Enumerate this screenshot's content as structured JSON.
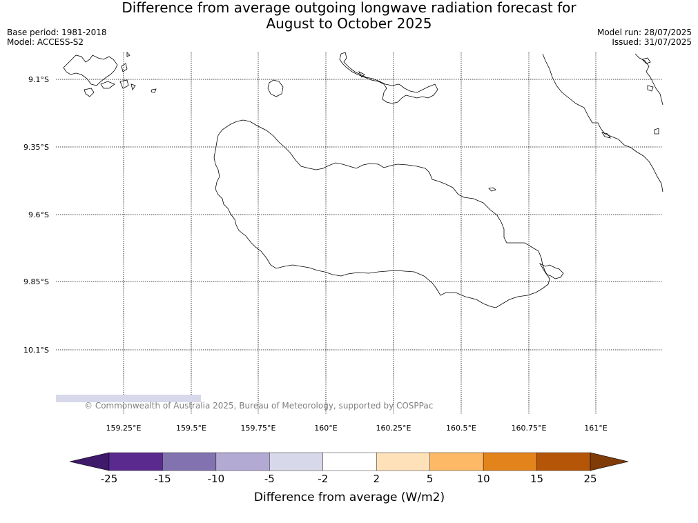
{
  "title": {
    "line1": "Difference from average outgoing longwave radiation forecast for",
    "line2": "August to October 2025"
  },
  "meta_left": {
    "base_period": "Base period: 1981-2018",
    "model": "Model: ACCESS-S2"
  },
  "meta_right": {
    "model_run": "Model run: 28/07/2025",
    "issued": "Issued: 31/07/2025"
  },
  "map": {
    "lat_labels": [
      "9.1°S",
      "9.35°S",
      "9.6°S",
      "9.85°S",
      "10.1°S"
    ],
    "lon_labels": [
      "159.25°E",
      "159.5°E",
      "159.75°E",
      "160°E",
      "160.25°E",
      "160.5°E",
      "160.75°E",
      "161°E"
    ],
    "copyright": "© Commonwealth of Australia 2025, Bureau of Meteorology, supported by COSPPac"
  },
  "legend": {
    "title": "Difference from average (W/m2)",
    "tick_labels": [
      "-25",
      "-15",
      "-10",
      "-5",
      "-2",
      "2",
      "5",
      "10",
      "15",
      "25"
    ],
    "colors": [
      "#3f1a6b",
      "#5a2a8e",
      "#8273b0",
      "#b3aad4",
      "#d8d8eb",
      "#ffffff",
      "#fee1b9",
      "#fdb965",
      "#e3831b",
      "#b55508",
      "#7f3b08"
    ]
  }
}
